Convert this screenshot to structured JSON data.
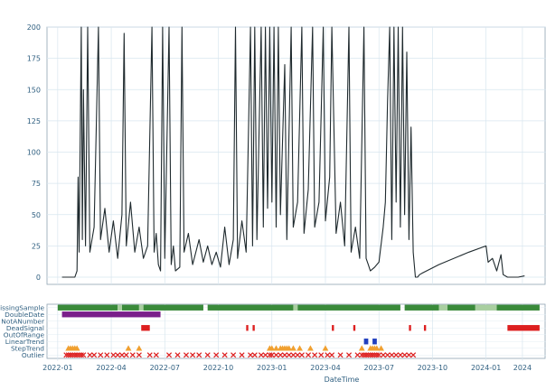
{
  "chart_data": [
    {
      "type": "line",
      "title": "",
      "xlabel": "",
      "ylabel": "",
      "ylim": [
        0,
        200
      ],
      "yticks": [
        "0",
        "25",
        "50",
        "75",
        "100",
        "125",
        "150",
        "175",
        "200"
      ],
      "grid": true,
      "line_color": "#1f2a2e",
      "series": [
        {
          "note_points": "(year-fraction, value)",
          "points": [
            [
              2022.02,
              0
            ],
            [
              2022.08,
              0
            ],
            [
              2022.09,
              5
            ],
            [
              2022.095,
              80
            ],
            [
              2022.1,
              20
            ],
            [
              2022.11,
              200
            ],
            [
              2022.115,
              30
            ],
            [
              2022.12,
              150
            ],
            [
              2022.13,
              25
            ],
            [
              2022.14,
              200
            ],
            [
              2022.15,
              20
            ],
            [
              2022.17,
              40
            ],
            [
              2022.19,
              200
            ],
            [
              2022.2,
              30
            ],
            [
              2022.22,
              55
            ],
            [
              2022.24,
              20
            ],
            [
              2022.26,
              45
            ],
            [
              2022.28,
              15
            ],
            [
              2022.3,
              50
            ],
            [
              2022.31,
              195
            ],
            [
              2022.32,
              25
            ],
            [
              2022.34,
              60
            ],
            [
              2022.36,
              20
            ],
            [
              2022.38,
              40
            ],
            [
              2022.4,
              15
            ],
            [
              2022.42,
              25
            ],
            [
              2022.44,
              200
            ],
            [
              2022.45,
              20
            ],
            [
              2022.46,
              35
            ],
            [
              2022.47,
              10
            ],
            [
              2022.48,
              5
            ],
            [
              2022.49,
              200
            ],
            [
              2022.5,
              15
            ],
            [
              2022.52,
              200
            ],
            [
              2022.53,
              10
            ],
            [
              2022.54,
              25
            ],
            [
              2022.55,
              5
            ],
            [
              2022.57,
              8
            ],
            [
              2022.58,
              200
            ],
            [
              2022.59,
              20
            ],
            [
              2022.61,
              35
            ],
            [
              2022.63,
              10
            ],
            [
              2022.66,
              30
            ],
            [
              2022.68,
              12
            ],
            [
              2022.7,
              25
            ],
            [
              2022.72,
              10
            ],
            [
              2022.74,
              20
            ],
            [
              2022.76,
              8
            ],
            [
              2022.78,
              40
            ],
            [
              2022.8,
              10
            ],
            [
              2022.82,
              30
            ],
            [
              2022.83,
              200
            ],
            [
              2022.84,
              15
            ],
            [
              2022.86,
              45
            ],
            [
              2022.88,
              20
            ],
            [
              2022.9,
              200
            ],
            [
              2022.91,
              25
            ],
            [
              2022.92,
              200
            ],
            [
              2022.93,
              30
            ],
            [
              2022.95,
              200
            ],
            [
              2022.96,
              40
            ],
            [
              2022.97,
              200
            ],
            [
              2022.98,
              55
            ],
            [
              2022.99,
              200
            ],
            [
              2023.0,
              60
            ],
            [
              2023.01,
              200
            ],
            [
              2023.02,
              40
            ],
            [
              2023.03,
              200
            ],
            [
              2023.04,
              50
            ],
            [
              2023.06,
              170
            ],
            [
              2023.07,
              30
            ],
            [
              2023.09,
              200
            ],
            [
              2023.1,
              40
            ],
            [
              2023.12,
              60
            ],
            [
              2023.14,
              200
            ],
            [
              2023.15,
              35
            ],
            [
              2023.17,
              70
            ],
            [
              2023.19,
              200
            ],
            [
              2023.2,
              40
            ],
            [
              2023.22,
              60
            ],
            [
              2023.24,
              200
            ],
            [
              2023.25,
              45
            ],
            [
              2023.27,
              80
            ],
            [
              2023.28,
              200
            ],
            [
              2023.3,
              35
            ],
            [
              2023.32,
              60
            ],
            [
              2023.34,
              25
            ],
            [
              2023.36,
              200
            ],
            [
              2023.37,
              20
            ],
            [
              2023.39,
              40
            ],
            [
              2023.41,
              15
            ],
            [
              2023.43,
              200
            ],
            [
              2023.44,
              15
            ],
            [
              2023.45,
              10
            ],
            [
              2023.46,
              5
            ],
            [
              2023.48,
              8
            ],
            [
              2023.5,
              12
            ],
            [
              2023.52,
              40
            ],
            [
              2023.53,
              60
            ],
            [
              2023.54,
              140
            ],
            [
              2023.55,
              200
            ],
            [
              2023.56,
              30
            ],
            [
              2023.57,
              200
            ],
            [
              2023.58,
              60
            ],
            [
              2023.59,
              200
            ],
            [
              2023.6,
              40
            ],
            [
              2023.61,
              200
            ],
            [
              2023.62,
              50
            ],
            [
              2023.63,
              180
            ],
            [
              2023.64,
              30
            ],
            [
              2023.65,
              120
            ],
            [
              2023.66,
              20
            ],
            [
              2023.67,
              0
            ],
            [
              2023.68,
              0
            ],
            [
              2023.69,
              2
            ],
            [
              2023.7,
              3
            ],
            [
              2023.78,
              10
            ],
            [
              2023.92,
              20
            ],
            [
              2024.0,
              25
            ],
            [
              2024.01,
              12
            ],
            [
              2024.03,
              15
            ],
            [
              2024.05,
              5
            ],
            [
              2024.07,
              18
            ],
            [
              2024.08,
              2
            ],
            [
              2024.1,
              0
            ],
            [
              2024.15,
              0
            ],
            [
              2024.18,
              1
            ]
          ]
        }
      ]
    },
    {
      "type": "scatter",
      "xlabel": "DateTime",
      "xlim_note": "shared time axis with the line chart",
      "xticks": [
        "2022-01",
        "2022-04",
        "2022-07",
        "2022-10",
        "2023-01",
        "2023-04",
        "2023-07",
        "2023-10",
        "2024-01",
        "2024"
      ],
      "rows": [
        "MissingSample",
        "DoubleDate",
        "NotANumber",
        "DeadSignal",
        "OutOfRange",
        "LinearTrend",
        "StepTrend",
        "Outlier"
      ],
      "grid": true,
      "flags": {
        "MissingSample": {
          "color": "#3a8a3a",
          "light_color": "#a9cfa0",
          "bands": [
            [
              2022.0,
              2022.28
            ],
            [
              2022.3,
              2022.38
            ],
            [
              2022.4,
              2022.68
            ],
            [
              2022.7,
              2023.1
            ],
            [
              2023.12,
              2023.6
            ],
            [
              2023.62,
              2023.78
            ],
            [
              2023.82,
              2023.95
            ],
            [
              2024.05,
              2024.25
            ]
          ],
          "light_bands": [
            [
              2022.28,
              2022.3
            ],
            [
              2022.38,
              2022.4
            ],
            [
              2023.1,
              2023.12
            ],
            [
              2023.78,
              2023.82
            ],
            [
              2023.95,
              2024.05
            ]
          ]
        },
        "DoubleDate": {
          "color": "#7a1f8a",
          "bands": [
            [
              2022.02,
              2022.48
            ]
          ]
        },
        "NotANumber": {
          "color": "#ffffff",
          "bands": []
        },
        "DeadSignal": {
          "color": "#dd1f1f",
          "bands": [
            [
              2022.39,
              2022.43
            ],
            [
              2022.88,
              2022.89
            ],
            [
              2022.91,
              2022.92
            ],
            [
              2023.28,
              2023.29
            ],
            [
              2023.38,
              2023.39
            ],
            [
              2023.64,
              2023.65
            ],
            [
              2023.71,
              2023.72
            ],
            [
              2024.1,
              2024.25
            ]
          ]
        },
        "OutOfRange": {
          "color": "#ffffff",
          "bands": []
        },
        "LinearTrend": {
          "color": "#1f3fbf",
          "bands": [
            [
              2023.43,
              2023.45
            ],
            [
              2023.47,
              2023.49
            ]
          ]
        },
        "StepTrend": {
          "color": "#f0a030",
          "marker": "triangle",
          "x": [
            2022.05,
            2022.06,
            2022.07,
            2022.08,
            2022.09,
            2022.33,
            2022.38,
            2022.99,
            2023.0,
            2023.02,
            2023.04,
            2023.05,
            2023.06,
            2023.07,
            2023.08,
            2023.1,
            2023.13,
            2023.18,
            2023.25,
            2023.42,
            2023.46,
            2023.47,
            2023.48,
            2023.49,
            2023.51
          ]
        },
        "Outlier": {
          "color": "#dd1f1f",
          "marker": "x",
          "x": [
            2022.04,
            2022.05,
            2022.06,
            2022.07,
            2022.08,
            2022.09,
            2022.1,
            2022.11,
            2022.12,
            2022.15,
            2022.17,
            2022.2,
            2022.23,
            2022.26,
            2022.28,
            2022.3,
            2022.32,
            2022.35,
            2022.38,
            2022.43,
            2022.46,
            2022.52,
            2022.56,
            2022.6,
            2022.63,
            2022.66,
            2022.7,
            2022.74,
            2022.78,
            2022.82,
            2022.86,
            2022.9,
            2022.92,
            2022.95,
            2022.97,
            2022.99,
            2023.0,
            2023.02,
            2023.04,
            2023.06,
            2023.08,
            2023.1,
            2023.12,
            2023.14,
            2023.17,
            2023.2,
            2023.23,
            2023.26,
            2023.28,
            2023.32,
            2023.36,
            2023.4,
            2023.42,
            2023.43,
            2023.44,
            2023.45,
            2023.46,
            2023.47,
            2023.48,
            2023.49,
            2023.5,
            2023.52,
            2023.54,
            2023.56,
            2023.58,
            2023.6,
            2023.62,
            2023.64,
            2023.66
          ]
        }
      }
    }
  ]
}
